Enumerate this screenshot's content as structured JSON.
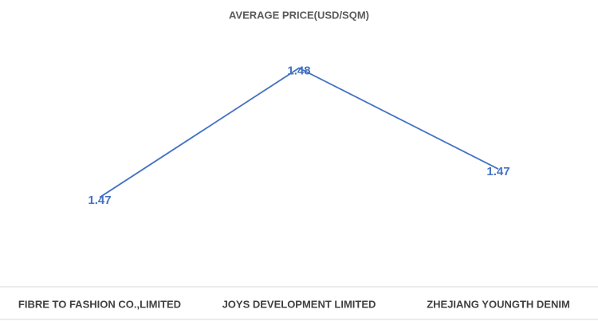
{
  "chart_data": {
    "type": "line",
    "title": "AVERAGE PRICE(USD/SQM)",
    "categories": [
      "FIBRE TO FASHION CO.,LIMITED",
      "JOYS DEVELOPMENT LIMITED",
      "ZHEJIANG YOUNGTH DENIM"
    ],
    "series": [
      {
        "name": "AVERAGE PRICE(USD/SQM)",
        "color": "#4472c4",
        "values": [
          1.4685,
          1.4808,
          1.4712
        ],
        "value_labels": [
          "1.47",
          "1.48",
          "1.47"
        ]
      }
    ],
    "ylim": [
      1.46,
      1.485
    ]
  }
}
